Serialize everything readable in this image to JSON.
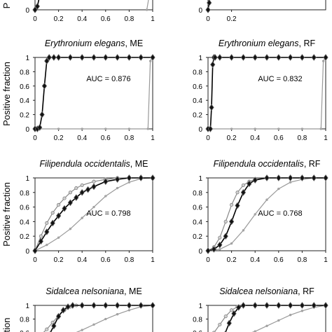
{
  "figure": {
    "row0_ylabel_fragment": "P",
    "ylabel": "Positive fraction",
    "row3_ylabel_fragment": "tion"
  },
  "chart_data": [
    {
      "type": "line",
      "species": "",
      "model": "",
      "auc": "",
      "x_ticks": [
        "0",
        "0.2",
        "0.4",
        "0.6",
        "0.8",
        "1"
      ],
      "y_ticks": [
        "0"
      ],
      "xlim": [
        0,
        1
      ],
      "ylim": [
        0,
        1
      ],
      "series": [
        {
          "style": "black-diamond",
          "x": [
            0,
            0.02,
            0.04,
            0.06,
            0.08,
            0.1,
            0.12
          ],
          "y": [
            0,
            0.05,
            0.2,
            0.5,
            0.8,
            0.95,
            1
          ]
        },
        {
          "style": "gray-line",
          "x": [
            0.95,
            0.97,
            0.99
          ],
          "y": [
            0,
            0.2,
            0.9
          ]
        }
      ]
    },
    {
      "type": "line",
      "species": "",
      "model": "",
      "auc": "",
      "x_ticks": [
        "0",
        "0.2"
      ],
      "y_ticks": [
        "0"
      ],
      "xlim": [
        0,
        1
      ],
      "ylim": [
        0,
        1
      ],
      "series": [
        {
          "style": "black-diamond",
          "x": [
            0,
            0.01,
            0.02,
            0.03,
            0.04
          ],
          "y": [
            0,
            0.1,
            0.4,
            0.8,
            1
          ]
        }
      ]
    },
    {
      "type": "line",
      "species": "Erythronium elegans",
      "model": "ME",
      "auc": "AUC = 0.876",
      "x_ticks": [
        "0",
        "0.2",
        "0.4",
        "0.6",
        "0.8",
        "1"
      ],
      "y_ticks": [
        "0",
        "0.2",
        "0.4",
        "0.6",
        "0.8",
        "1"
      ],
      "xlim": [
        0,
        1
      ],
      "ylim": [
        0,
        1
      ],
      "series": [
        {
          "style": "black-diamond",
          "x": [
            0,
            0.02,
            0.04,
            0.06,
            0.08,
            0.1,
            0.12,
            0.16,
            0.2,
            0.3,
            0.4,
            0.5,
            0.6,
            0.7,
            0.8,
            0.9,
            1
          ],
          "y": [
            0,
            0,
            0.02,
            0.2,
            0.6,
            0.95,
            1,
            1,
            1,
            1,
            1,
            1,
            1,
            1,
            1,
            1,
            1
          ]
        },
        {
          "style": "gray-line",
          "x": [
            0,
            0.2,
            0.4,
            0.6,
            0.8,
            0.96,
            0.98,
            1
          ],
          "y": [
            0,
            0,
            0,
            0,
            0,
            0,
            0.95,
            1
          ]
        }
      ]
    },
    {
      "type": "line",
      "species": "Erythronium elegans",
      "model": "RF",
      "auc": "AUC = 0.832",
      "x_ticks": [
        "0",
        "0.2",
        "0.4",
        "0.6",
        "0.8",
        "1"
      ],
      "y_ticks": [
        "0",
        "0.2",
        "0.4",
        "0.6",
        "0.8",
        "1"
      ],
      "xlim": [
        0,
        1
      ],
      "ylim": [
        0,
        1
      ],
      "series": [
        {
          "style": "black-diamond",
          "x": [
            0,
            0.02,
            0.03,
            0.04,
            0.05,
            0.06,
            0.1,
            0.2,
            0.3,
            0.4,
            0.5,
            0.6,
            0.7,
            0.8,
            0.9,
            1
          ],
          "y": [
            0,
            0,
            0.3,
            0.9,
            1,
            1,
            1,
            1,
            1,
            1,
            1,
            1,
            1,
            1,
            1,
            1
          ]
        },
        {
          "style": "gray-line",
          "x": [
            0,
            0.2,
            0.4,
            0.6,
            0.8,
            0.96,
            0.98,
            1
          ],
          "y": [
            0,
            0,
            0,
            0,
            0,
            0,
            0.95,
            1
          ]
        }
      ]
    },
    {
      "type": "line",
      "species": "Filipendula occidentalis",
      "model": "ME",
      "auc": "AUC = 0.798",
      "x_ticks": [
        "0",
        "0.2",
        "0.4",
        "0.6",
        "0.8",
        "1"
      ],
      "y_ticks": [
        "0",
        "0.2",
        "0.4",
        "0.6",
        "0.8",
        "1"
      ],
      "xlim": [
        0,
        1
      ],
      "ylim": [
        0,
        1
      ],
      "series": [
        {
          "style": "gray-circle",
          "x": [
            0,
            0.05,
            0.1,
            0.15,
            0.2,
            0.25,
            0.3,
            0.35,
            0.4,
            0.5,
            0.6,
            0.7,
            0.8,
            0.9,
            1
          ],
          "y": [
            0,
            0.2,
            0.38,
            0.52,
            0.63,
            0.72,
            0.8,
            0.86,
            0.9,
            0.95,
            0.98,
            1,
            1,
            1,
            1
          ]
        },
        {
          "style": "black-diamond",
          "x": [
            0,
            0.05,
            0.1,
            0.15,
            0.2,
            0.25,
            0.3,
            0.35,
            0.4,
            0.45,
            0.5,
            0.6,
            0.7,
            0.8,
            0.9,
            1
          ],
          "y": [
            0,
            0.13,
            0.26,
            0.38,
            0.48,
            0.58,
            0.66,
            0.73,
            0.8,
            0.84,
            0.88,
            0.95,
            0.98,
            1,
            1,
            1
          ]
        },
        {
          "style": "gray-line",
          "x": [
            0,
            0.1,
            0.2,
            0.3,
            0.4,
            0.5,
            0.6,
            0.7,
            0.8,
            0.9,
            1
          ],
          "y": [
            0,
            0.08,
            0.18,
            0.3,
            0.45,
            0.6,
            0.75,
            0.86,
            0.94,
            0.99,
            1
          ]
        }
      ]
    },
    {
      "type": "line",
      "species": "Filipendula occidentalis",
      "model": "RF",
      "auc": "AUC = 0.768",
      "x_ticks": [
        "0",
        "0.2",
        "0.4",
        "0.6",
        "0.8",
        "1"
      ],
      "y_ticks": [
        "0",
        "0.2",
        "0.4",
        "0.6",
        "0.8",
        "1"
      ],
      "xlim": [
        0,
        1
      ],
      "ylim": [
        0,
        1
      ],
      "series": [
        {
          "style": "gray-circle",
          "x": [
            0,
            0.05,
            0.1,
            0.15,
            0.2,
            0.25,
            0.3,
            0.35,
            0.4,
            0.5,
            0.6,
            0.7,
            0.8,
            0.9,
            1
          ],
          "y": [
            0,
            0.05,
            0.18,
            0.4,
            0.63,
            0.8,
            0.9,
            0.95,
            0.98,
            1,
            1,
            1,
            1,
            1,
            1
          ]
        },
        {
          "style": "black-diamond",
          "x": [
            0,
            0.05,
            0.1,
            0.15,
            0.2,
            0.25,
            0.3,
            0.35,
            0.4,
            0.5,
            0.6,
            0.7,
            0.8,
            0.9,
            1
          ],
          "y": [
            0,
            0.02,
            0.08,
            0.2,
            0.4,
            0.62,
            0.8,
            0.92,
            0.97,
            1,
            1,
            1,
            1,
            1,
            1
          ]
        },
        {
          "style": "gray-line",
          "x": [
            0,
            0.1,
            0.2,
            0.3,
            0.4,
            0.5,
            0.6,
            0.7,
            0.8,
            0.9,
            1
          ],
          "y": [
            0,
            0.02,
            0.1,
            0.28,
            0.5,
            0.7,
            0.85,
            0.94,
            0.98,
            1,
            1
          ]
        }
      ]
    },
    {
      "type": "line",
      "species": "Sidalcea nelsoniana",
      "model": "ME",
      "auc": "",
      "x_ticks": [],
      "y_ticks": [
        "0.6",
        "0.8",
        "1"
      ],
      "xlim": [
        0,
        1
      ],
      "ylim": [
        0.55,
        1
      ],
      "series": [
        {
          "style": "gray-circle",
          "x": [
            0.05,
            0.1,
            0.15,
            0.2,
            0.25,
            0.3,
            0.35
          ],
          "y": [
            0.57,
            0.65,
            0.75,
            0.85,
            0.93,
            0.98,
            1
          ]
        },
        {
          "style": "black-diamond",
          "x": [
            0.12,
            0.16,
            0.2,
            0.24,
            0.28,
            0.32,
            0.4,
            0.5,
            0.6,
            0.7,
            0.8,
            0.9,
            1
          ],
          "y": [
            0.57,
            0.7,
            0.84,
            0.93,
            0.98,
            1,
            1,
            1,
            1,
            1,
            1,
            1,
            1
          ]
        },
        {
          "style": "gray-line",
          "x": [
            0.3,
            0.4,
            0.5,
            0.6,
            0.7,
            0.8,
            0.9,
            1
          ],
          "y": [
            0.57,
            0.64,
            0.72,
            0.8,
            0.87,
            0.93,
            0.98,
            1
          ]
        }
      ]
    },
    {
      "type": "line",
      "species": "Sidalcea nelsoniana",
      "model": "RF",
      "auc": "",
      "x_ticks": [],
      "y_ticks": [
        "0.6",
        "0.8",
        "1"
      ],
      "xlim": [
        0,
        1
      ],
      "ylim": [
        0.55,
        1
      ],
      "series": [
        {
          "style": "gray-circle",
          "x": [
            0.05,
            0.1,
            0.15,
            0.2,
            0.25,
            0.3
          ],
          "y": [
            0.6,
            0.72,
            0.84,
            0.93,
            0.98,
            1
          ]
        },
        {
          "style": "black-diamond",
          "x": [
            0.14,
            0.18,
            0.22,
            0.26,
            0.3,
            0.4,
            0.5,
            0.6,
            0.7,
            0.8,
            0.9,
            1
          ],
          "y": [
            0.57,
            0.74,
            0.88,
            0.97,
            1,
            1,
            1,
            1,
            1,
            1,
            1,
            1
          ]
        },
        {
          "style": "gray-line",
          "x": [
            0.3,
            0.4,
            0.5,
            0.6,
            0.7,
            0.8,
            0.9,
            1
          ],
          "y": [
            0.57,
            0.62,
            0.7,
            0.78,
            0.86,
            0.92,
            0.97,
            1
          ]
        }
      ]
    }
  ]
}
